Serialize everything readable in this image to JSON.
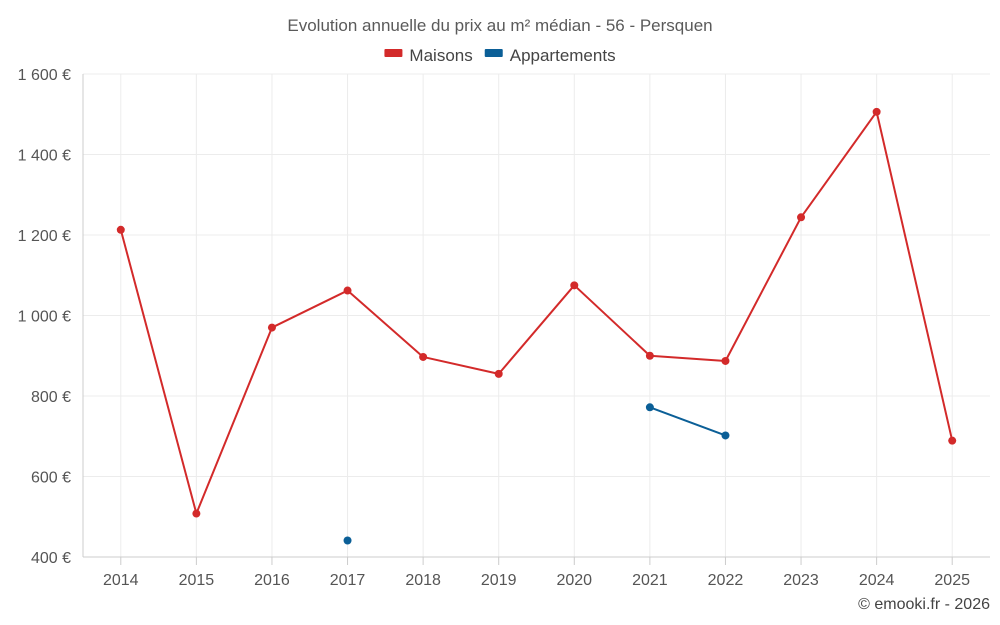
{
  "chart_data": {
    "type": "line",
    "title": "Evolution annuelle du prix au m² médian - 56 - Persquen",
    "categories": [
      "2014",
      "2015",
      "2016",
      "2017",
      "2018",
      "2019",
      "2020",
      "2021",
      "2022",
      "2023",
      "2024",
      "2025"
    ],
    "series": [
      {
        "name": "Maisons",
        "color": "#d32a2a",
        "values": [
          1213,
          508,
          970,
          1062,
          897,
          855,
          1075,
          900,
          887,
          1244,
          1506,
          689
        ]
      },
      {
        "name": "Appartements",
        "color": "#0b5f97",
        "values": [
          null,
          null,
          null,
          441,
          null,
          null,
          null,
          772,
          702,
          null,
          null,
          null
        ]
      }
    ],
    "ylim": [
      400,
      1600
    ],
    "yticks": [
      400,
      600,
      800,
      1000,
      1200,
      1400,
      1600
    ],
    "ytick_labels": [
      "400 €",
      "600 €",
      "800 €",
      "1 000 €",
      "1 200 €",
      "1 400 €",
      "1 600 €"
    ],
    "xlabel": "",
    "ylabel": "",
    "grid": true,
    "legend_position": "top-center"
  },
  "credit": "© emooki.fr - 2026"
}
